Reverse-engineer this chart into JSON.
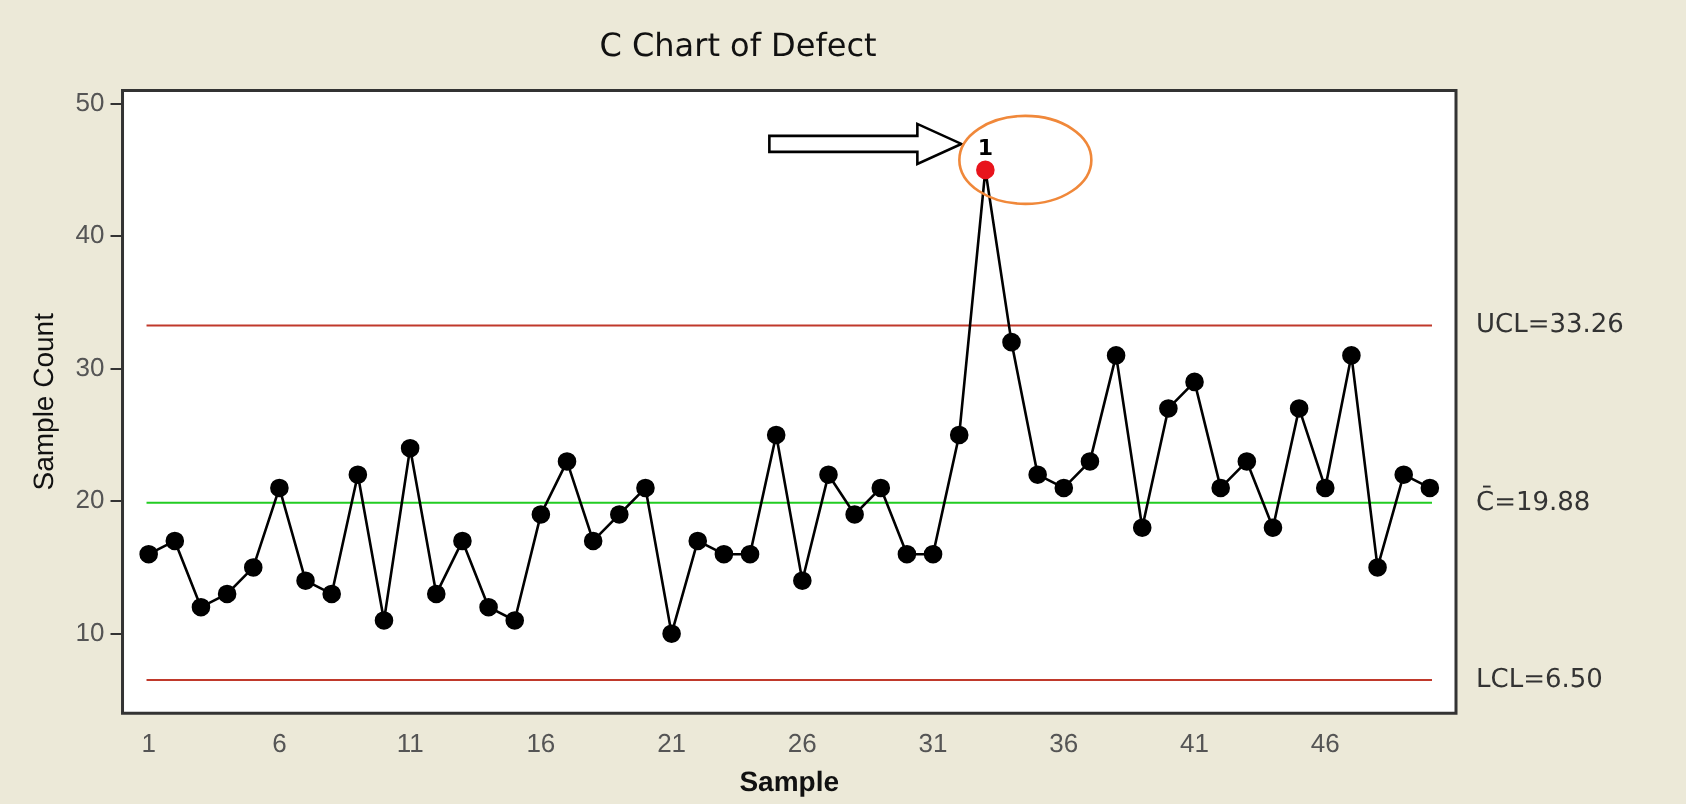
{
  "chart_data": {
    "type": "line",
    "title": "C Chart of Defect",
    "xlabel": "Sample",
    "ylabel": "Sample Count",
    "x": [
      1,
      2,
      3,
      4,
      5,
      6,
      7,
      8,
      9,
      10,
      11,
      12,
      13,
      14,
      15,
      16,
      17,
      18,
      19,
      20,
      21,
      22,
      23,
      24,
      25,
      26,
      27,
      28,
      29,
      30,
      31,
      32,
      33,
      34,
      35,
      36,
      37,
      38,
      39,
      40,
      41,
      42,
      43,
      44,
      45,
      46,
      47,
      48,
      49,
      50
    ],
    "series": [
      {
        "color": "#000000",
        "colors": [
          "#000000",
          "#000000",
          "#000000",
          "#000000",
          "#000000",
          "#000000",
          "#000000",
          "#000000",
          "#000000",
          "#000000",
          "#000000",
          "#000000",
          "#000000",
          "#000000",
          "#000000",
          "#000000",
          "#000000",
          "#000000",
          "#000000",
          "#000000",
          "#000000",
          "#000000",
          "#000000",
          "#000000",
          "#000000",
          "#000000",
          "#000000",
          "#000000",
          "#000000",
          "#000000",
          "#000000",
          "#000000",
          "#e8141c",
          "#000000",
          "#000000",
          "#000000",
          "#000000",
          "#000000",
          "#000000",
          "#000000",
          "#000000",
          "#000000",
          "#000000",
          "#000000",
          "#000000",
          "#000000",
          "#000000",
          "#000000",
          "#000000",
          "#000000"
        ],
        "values": [
          16,
          17,
          12,
          13,
          15,
          21,
          14,
          13,
          22,
          11,
          24,
          13,
          17,
          12,
          11,
          19,
          23,
          17,
          19,
          21,
          10,
          17,
          16,
          16,
          25,
          14,
          22,
          19,
          21,
          16,
          16,
          25,
          45,
          32,
          22,
          21,
          23,
          31,
          18,
          27,
          29,
          21,
          23,
          18,
          27,
          21,
          31,
          15,
          22,
          21
        ]
      }
    ],
    "xlim": [
      0,
      51
    ],
    "xticks": [
      1,
      6,
      11,
      16,
      21,
      26,
      31,
      36,
      41,
      46
    ],
    "ylim": [
      4,
      51
    ],
    "yticks": [
      10,
      20,
      30,
      40,
      50
    ],
    "ref_lines": [
      {
        "axis": "y",
        "value": 33.26,
        "label": "UCL=33.26",
        "color": "#c0392b"
      },
      {
        "axis": "y",
        "value": 19.88,
        "label": "C̄=19.88",
        "color": "#22cc22"
      },
      {
        "axis": "y",
        "value": 6.5,
        "label": "LCL=6.50",
        "color": "#c0392b"
      }
    ],
    "annotations": [
      {
        "text": "1",
        "x": 33,
        "y": 45
      }
    ],
    "grid": false,
    "legend": false,
    "marker": "circle",
    "line_style": "solid"
  }
}
